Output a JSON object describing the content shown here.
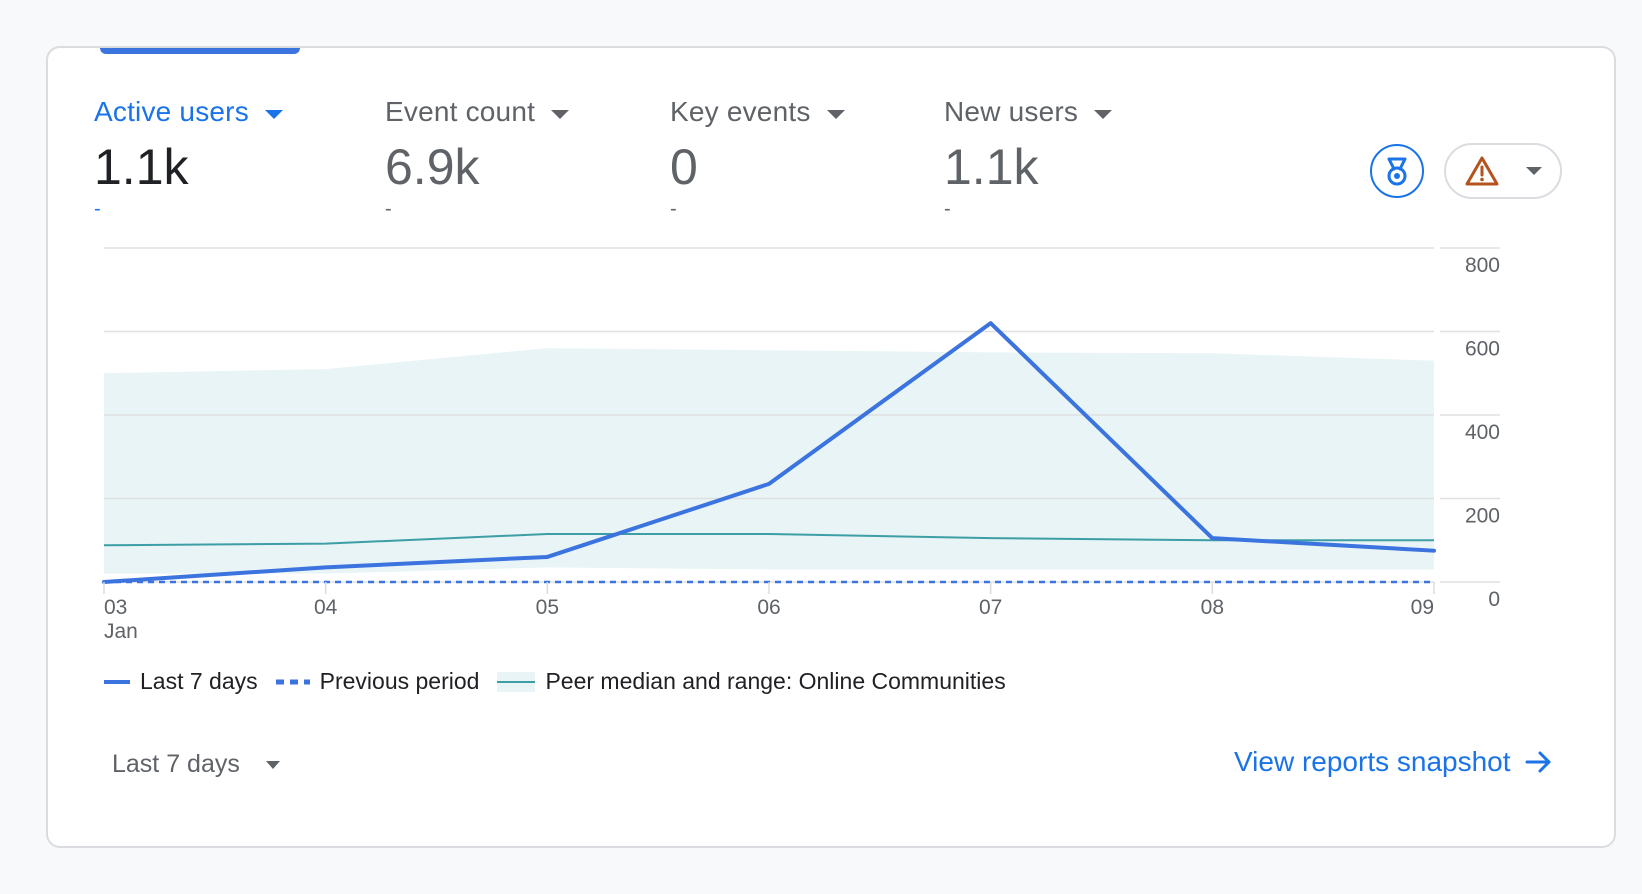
{
  "metrics": [
    {
      "label": "Active users",
      "value": "1.1k",
      "change": "-"
    },
    {
      "label": "Event count",
      "value": "6.9k",
      "change": "-"
    },
    {
      "label": "Key events",
      "value": "0",
      "change": "-"
    },
    {
      "label": "New users",
      "value": "1.1k",
      "change": "-"
    }
  ],
  "header_buttons": {
    "badge_icon": "medal-badge-icon",
    "warning_icon": "warning-triangle-icon",
    "warning_color": "#b3541e"
  },
  "chart_data": {
    "type": "line",
    "x": [
      "03",
      "04",
      "05",
      "06",
      "07",
      "08",
      "09"
    ],
    "x_sublabel": "Jan",
    "y_ticks": [
      "800",
      "600",
      "400",
      "200",
      "0"
    ],
    "ylim": [
      0,
      800
    ],
    "y_axis_position": "right",
    "grid": true,
    "series": [
      {
        "name": "Last 7 days",
        "values": [
          0,
          35,
          60,
          235,
          620,
          105,
          75
        ],
        "color": "#3b73df",
        "style": "solid"
      },
      {
        "name": "Previous period",
        "values": [
          0,
          0,
          0,
          0,
          0,
          0,
          0
        ],
        "color": "#3b73df",
        "style": "dashed"
      },
      {
        "name": "Peer median and range: Online Communities",
        "values": [
          88,
          92,
          115,
          115,
          105,
          100,
          100
        ],
        "color": "#3d9ea6",
        "style": "solid",
        "range_low": [
          20,
          20,
          35,
          30,
          30,
          30,
          30
        ],
        "range_high": [
          500,
          510,
          560,
          555,
          550,
          548,
          530
        ],
        "range_color": "#e8f4f6"
      }
    ],
    "legend_position": "bottom-left"
  },
  "legend": {
    "last7": "Last 7 days",
    "previous": "Previous period",
    "peer": "Peer median and range: Online Communities"
  },
  "footer": {
    "range_label": "Last 7 days",
    "snapshot_link": "View reports snapshot"
  },
  "colors": {
    "accent": "#1a73e8",
    "line": "#3b73df",
    "peer": "#3d9ea6"
  }
}
